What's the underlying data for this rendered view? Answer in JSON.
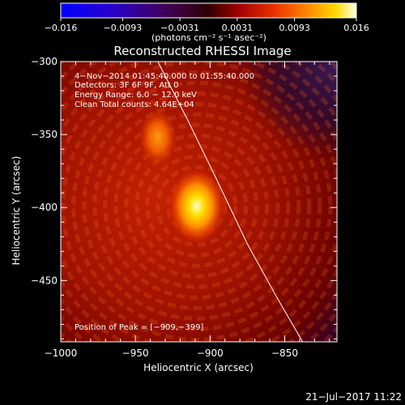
{
  "colorbar": {
    "ticks": [
      -0.016,
      -0.0093,
      -0.0031,
      0.0031,
      0.0093,
      0.016
    ],
    "tick_labels": [
      "−0.016",
      "−0.0093",
      "−0.0031",
      "0.0031",
      "0.0093",
      "0.016"
    ],
    "units_label": "(photons cm⁻² s⁻¹ asec⁻²)",
    "range": [
      -0.016,
      0.016
    ]
  },
  "chart_data": {
    "type": "heatmap",
    "title": "Reconstructed RHESSI Image",
    "xlabel": "Heliocentric X (arcsec)",
    "ylabel": "Heliocentric Y (arcsec)",
    "xlim": [
      -1000,
      -815
    ],
    "ylim": [
      -492,
      -300
    ],
    "x_ticks": [
      -1000,
      -950,
      -900,
      -850
    ],
    "x_tick_labels": [
      "−1000",
      "−950",
      "−900",
      "−850"
    ],
    "y_ticks": [
      -300,
      -350,
      -400,
      -450
    ],
    "y_tick_labels": [
      "−300",
      "−350",
      "−400",
      "−450"
    ],
    "sources": [
      {
        "x": -909,
        "y": -399,
        "sigma_x": 6,
        "sigma_y": 8,
        "peak": 0.016
      },
      {
        "x": -935,
        "y": -352,
        "sigma_x": 4,
        "sigma_y": 6,
        "peak": 0.0075
      }
    ],
    "limb_curve": [
      [
        -935,
        -300
      ],
      [
        -915,
        -340
      ],
      [
        -895,
        -382
      ],
      [
        -875,
        -425
      ],
      [
        -855,
        -462
      ],
      [
        -838,
        -492
      ]
    ],
    "info_lines": [
      " 4−Nov−2014 01:45:40.000 to 01:55:40.000",
      "Detectors: 3F 6F 9F, Att 0",
      "Energy Range: 6.0 − 12.0 keV",
      "Clean    Total counts: 4.64E+04"
    ],
    "peak_label": "Position of Peak = [−909,−399]"
  },
  "timestamp": "21−Jul−2017 11:22"
}
